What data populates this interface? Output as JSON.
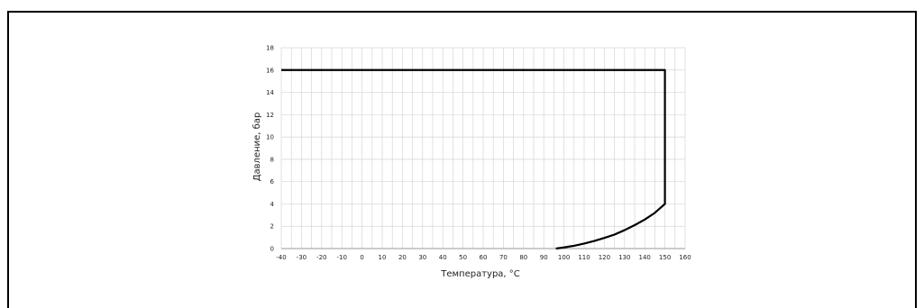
{
  "chart_data": {
    "type": "line",
    "title": "",
    "xlabel": "Температура, °С",
    "ylabel": "Давление, бар",
    "xlim": [
      -40,
      160
    ],
    "ylim": [
      0,
      18
    ],
    "grid": true,
    "x_ticks": [
      -40,
      -30,
      -20,
      -10,
      0,
      10,
      20,
      30,
      40,
      50,
      60,
      70,
      80,
      90,
      100,
      110,
      120,
      130,
      140,
      150,
      160
    ],
    "y_ticks": [
      0,
      2,
      4,
      6,
      8,
      10,
      12,
      14,
      16,
      18
    ],
    "x_tick_labels": [
      "-40",
      "-30",
      "-20",
      "-10",
      "0",
      "10",
      "20",
      "30",
      "40",
      "50",
      "60",
      "70",
      "80",
      "90",
      "100",
      "110",
      "120",
      "130",
      "140",
      "150",
      "160"
    ],
    "y_tick_labels": [
      "0",
      "2",
      "4",
      "6",
      "8",
      "10",
      "12",
      "14",
      "16",
      "18"
    ],
    "series": [
      {
        "x": [
          -40,
          150,
          150,
          145,
          140,
          135,
          130,
          125,
          120,
          115,
          110,
          105,
          100,
          96
        ],
        "y": [
          16,
          16,
          4,
          3.2,
          2.6,
          2.1,
          1.65,
          1.25,
          0.95,
          0.68,
          0.45,
          0.25,
          0.1,
          0
        ],
        "color": "#000000"
      }
    ]
  }
}
